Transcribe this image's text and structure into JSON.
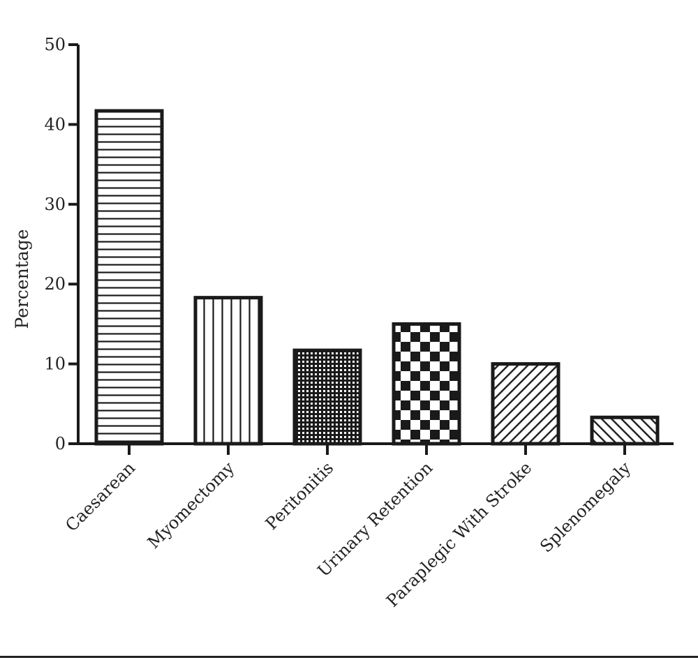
{
  "chart_data": {
    "type": "bar",
    "title": "",
    "xlabel": "",
    "ylabel": "Percentage",
    "ylim": [
      0,
      50
    ],
    "yticks": [
      0,
      10,
      20,
      30,
      40,
      50
    ],
    "categories": [
      "Caesarean",
      "Myomectomy",
      "Peritonitis",
      "Urinary Retention",
      "Paraplegic With Stroke",
      "Splenomegaly"
    ],
    "values": [
      41.7,
      18.3,
      11.7,
      15.0,
      10.0,
      3.3
    ],
    "patterns": [
      "horizontal-lines",
      "vertical-lines",
      "fine-dots",
      "checkerboard",
      "diagonal-lines",
      "diagonal-lines-reverse"
    ],
    "grid": false,
    "legend": "none",
    "colors": {
      "stroke": "#1a1a1a",
      "background": "#ffffff"
    }
  }
}
